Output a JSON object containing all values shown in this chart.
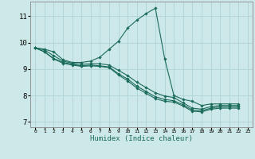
{
  "xlabel": "Humidex (Indice chaleur)",
  "bg_color": "#cde8e8",
  "line_color": "#1a6b5a",
  "grid_color": "#aed4d4",
  "xlim": [
    -0.5,
    23.5
  ],
  "ylim": [
    6.8,
    11.55
  ],
  "yticks": [
    7,
    8,
    9,
    10,
    11
  ],
  "xticks": [
    0,
    1,
    2,
    3,
    4,
    5,
    6,
    7,
    8,
    9,
    10,
    11,
    12,
    13,
    14,
    15,
    16,
    17,
    18,
    19,
    20,
    21,
    22,
    23
  ],
  "series": [
    {
      "x": [
        0,
        1,
        2,
        3,
        4,
        5,
        6,
        7,
        8,
        9,
        10,
        11,
        12,
        13,
        14,
        15,
        16,
        17,
        18,
        19,
        20,
        21,
        22
      ],
      "y": [
        9.8,
        9.75,
        9.65,
        9.35,
        9.25,
        9.25,
        9.3,
        9.45,
        9.75,
        10.05,
        10.55,
        10.85,
        11.1,
        11.3,
        9.4,
        8.0,
        7.85,
        7.78,
        7.62,
        7.68,
        7.68,
        7.68,
        7.68
      ]
    },
    {
      "x": [
        0,
        1,
        2,
        3,
        4,
        5,
        6,
        7,
        8,
        9,
        10,
        11,
        12,
        13,
        14,
        15,
        16,
        17,
        18,
        19,
        20,
        21,
        22
      ],
      "y": [
        9.8,
        9.72,
        9.5,
        9.3,
        9.22,
        9.18,
        9.2,
        9.2,
        9.15,
        8.95,
        8.75,
        8.5,
        8.3,
        8.1,
        7.98,
        7.92,
        7.72,
        7.52,
        7.48,
        7.58,
        7.62,
        7.62,
        7.62
      ]
    },
    {
      "x": [
        0,
        1,
        2,
        3,
        4,
        5,
        6,
        7,
        8,
        9,
        10,
        11,
        12,
        13,
        14,
        15,
        16,
        17,
        18,
        19,
        20,
        21,
        22
      ],
      "y": [
        9.8,
        9.65,
        9.4,
        9.25,
        9.18,
        9.12,
        9.15,
        9.12,
        9.08,
        8.82,
        8.62,
        8.35,
        8.15,
        7.95,
        7.85,
        7.8,
        7.65,
        7.45,
        7.42,
        7.52,
        7.57,
        7.57,
        7.57
      ]
    },
    {
      "x": [
        0,
        1,
        2,
        3,
        4,
        5,
        6,
        7,
        8,
        9,
        10,
        11,
        12,
        13,
        14,
        15,
        16,
        17,
        18,
        19,
        20,
        21,
        22
      ],
      "y": [
        9.8,
        9.65,
        9.38,
        9.22,
        9.15,
        9.1,
        9.12,
        9.1,
        9.05,
        8.78,
        8.55,
        8.28,
        8.08,
        7.88,
        7.78,
        7.75,
        7.6,
        7.4,
        7.38,
        7.48,
        7.52,
        7.52,
        7.52
      ]
    }
  ]
}
